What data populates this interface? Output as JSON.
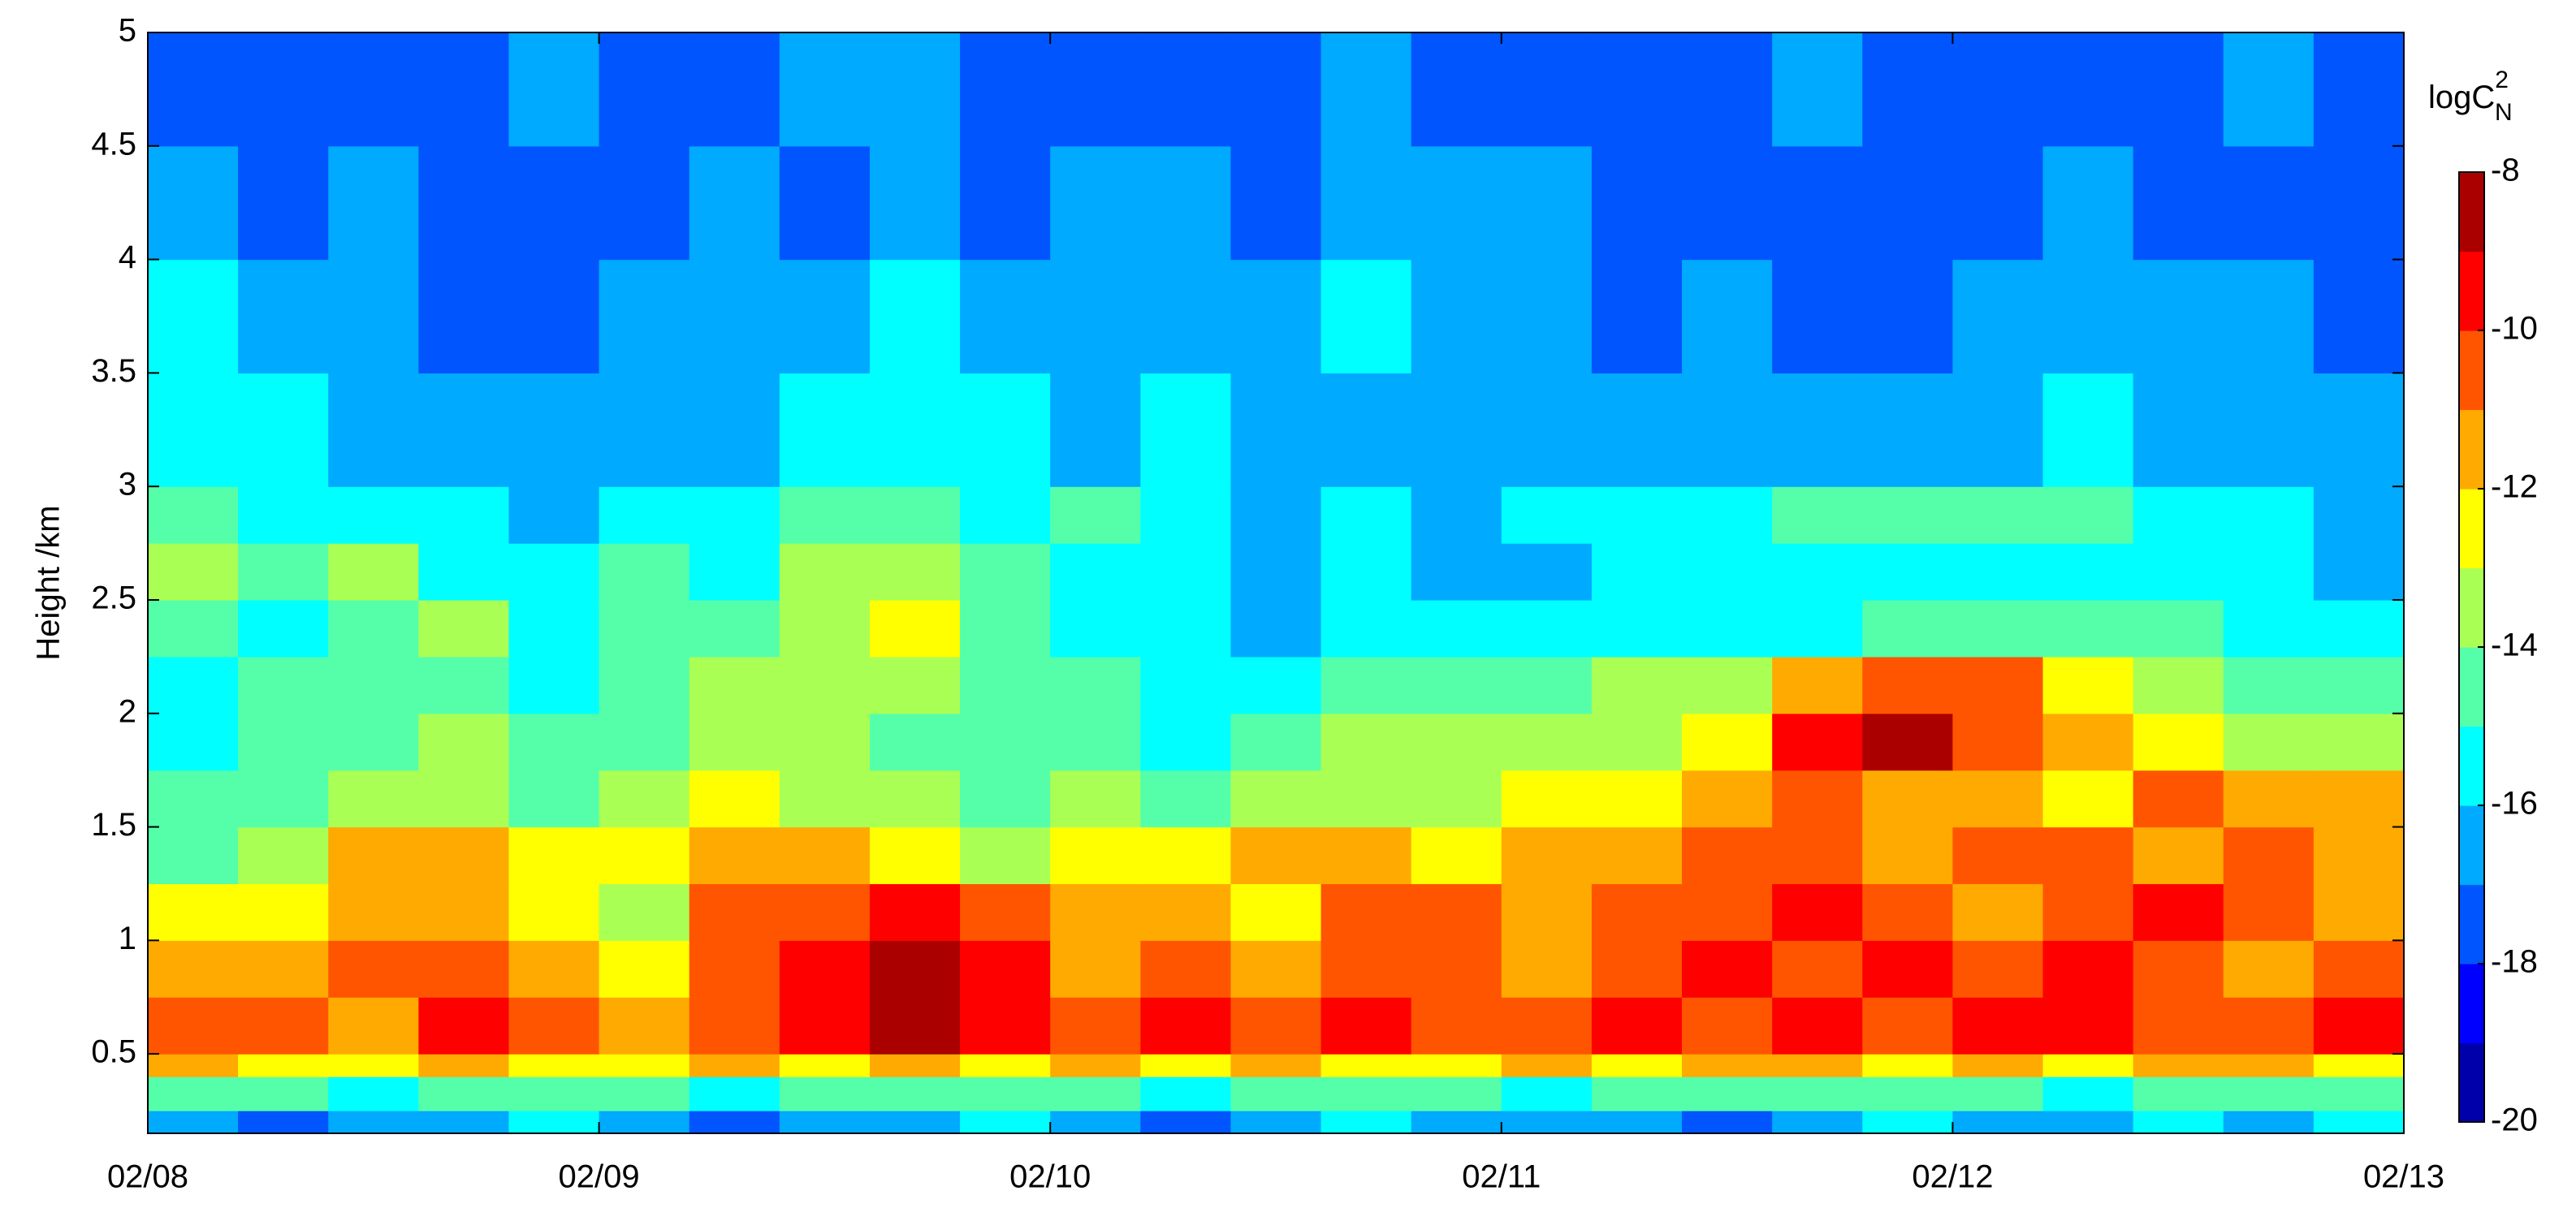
{
  "chart_data": {
    "type": "heatmap",
    "ylabel": "Height /km",
    "colorbar_label": {
      "base": "logC",
      "sup": "2",
      "sub": "N"
    },
    "colormap": "jet",
    "clim": [
      -20,
      -8
    ],
    "cticks": [
      -8,
      -10,
      -12,
      -14,
      -16,
      -18,
      -20
    ],
    "xlim": [
      8,
      13
    ],
    "xticks": [
      {
        "value": 8,
        "label": "02/08"
      },
      {
        "value": 9,
        "label": "02/09"
      },
      {
        "value": 10,
        "label": "02/10"
      },
      {
        "value": 11,
        "label": "02/11"
      },
      {
        "value": 12,
        "label": "02/12"
      },
      {
        "value": 13,
        "label": "02/13"
      }
    ],
    "ylim": [
      0.15,
      5
    ],
    "yticks": [
      0.5,
      1,
      1.5,
      2,
      2.5,
      3,
      3.5,
      4,
      4.5,
      5
    ],
    "x_bins": [
      8,
      8.2,
      8.4,
      8.6,
      8.8,
      9,
      9.2,
      9.4,
      9.6,
      9.8,
      10,
      10.2,
      10.4,
      10.6,
      10.8,
      11,
      11.2,
      11.4,
      11.6,
      11.8,
      12,
      12.2,
      12.4,
      12.6,
      12.8,
      13
    ],
    "y_bins": [
      0.15,
      0.25,
      0.4,
      0.5,
      0.75,
      1,
      1.25,
      1.5,
      1.75,
      2,
      2.25,
      2.5,
      2.75,
      3,
      3.5,
      4,
      4.5,
      5
    ],
    "values": [
      [
        -17,
        -18,
        -17,
        -17,
        -16,
        -17,
        -18,
        -17,
        -17,
        -16,
        -17,
        -18,
        -17,
        -16,
        -17,
        -17,
        -17,
        -18,
        -17,
        -16,
        -17,
        -17,
        -16,
        -17,
        -16
      ],
      [
        -15,
        -15,
        -16,
        -15,
        -15,
        -15,
        -16,
        -15,
        -15,
        -15,
        -15,
        -16,
        -15,
        -15,
        -15,
        -16,
        -15,
        -15,
        -15,
        -15,
        -15,
        -16,
        -15,
        -15,
        -15
      ],
      [
        -12,
        -13,
        -13,
        -12,
        -13,
        -13,
        -12,
        -13,
        -12,
        -13,
        -12,
        -13,
        -12,
        -13,
        -13,
        -12,
        -13,
        -12,
        -12,
        -13,
        -12,
        -13,
        -12,
        -12,
        -13
      ],
      [
        -11,
        -11,
        -12,
        -10,
        -11,
        -12,
        -11,
        -10,
        -9,
        -10,
        -11,
        -10,
        -11,
        -10,
        -11,
        -11,
        -10,
        -11,
        -10,
        -11,
        -10,
        -10,
        -11,
        -11,
        -10
      ],
      [
        -12,
        -12,
        -11,
        -11,
        -12,
        -13,
        -11,
        -10,
        -9,
        -10,
        -12,
        -11,
        -12,
        -11,
        -11,
        -12,
        -11,
        -10,
        -11,
        -10,
        -11,
        -10,
        -11,
        -12,
        -11
      ],
      [
        -13,
        -13,
        -12,
        -12,
        -13,
        -14,
        -11,
        -11,
        -10,
        -11,
        -12,
        -12,
        -13,
        -11,
        -11,
        -12,
        -11,
        -11,
        -10,
        -11,
        -12,
        -11,
        -10,
        -11,
        -12
      ],
      [
        -15,
        -14,
        -12,
        -12,
        -13,
        -13,
        -12,
        -12,
        -13,
        -14,
        -13,
        -13,
        -12,
        -12,
        -13,
        -12,
        -12,
        -11,
        -11,
        -12,
        -11,
        -11,
        -12,
        -11,
        -12
      ],
      [
        -15,
        -15,
        -14,
        -14,
        -15,
        -14,
        -13,
        -14,
        -14,
        -15,
        -14,
        -15,
        -14,
        -14,
        -14,
        -13,
        -13,
        -12,
        -11,
        -12,
        -12,
        -13,
        -11,
        -12,
        -12
      ],
      [
        -16,
        -15,
        -15,
        -14,
        -15,
        -15,
        -14,
        -14,
        -15,
        -15,
        -15,
        -16,
        -15,
        -14,
        -14,
        -14,
        -14,
        -13,
        -10,
        -9,
        -11,
        -12,
        -13,
        -14,
        -14
      ],
      [
        -16,
        -15,
        -15,
        -15,
        -16,
        -15,
        -14,
        -14,
        -14,
        -15,
        -15,
        -16,
        -16,
        -15,
        -15,
        -15,
        -14,
        -14,
        -12,
        -11,
        -11,
        -13,
        -14,
        -15,
        -15
      ],
      [
        -15,
        -16,
        -15,
        -14,
        -16,
        -15,
        -15,
        -14,
        -13,
        -15,
        -16,
        -16,
        -17,
        -16,
        -16,
        -16,
        -16,
        -16,
        -16,
        -15,
        -15,
        -15,
        -15,
        -16,
        -16
      ],
      [
        -14,
        -15,
        -14,
        -16,
        -16,
        -15,
        -16,
        -14,
        -14,
        -15,
        -16,
        -16,
        -17,
        -16,
        -17,
        -17,
        -16,
        -16,
        -16,
        -16,
        -16,
        -16,
        -16,
        -16,
        -17
      ],
      [
        -15,
        -16,
        -16,
        -16,
        -17,
        -16,
        -16,
        -15,
        -15,
        -16,
        -15,
        -16,
        -17,
        -16,
        -17,
        -16,
        -16,
        -16,
        -15,
        -15,
        -15,
        -15,
        -16,
        -16,
        -17
      ],
      [
        -16,
        -16,
        -17,
        -17,
        -17,
        -17,
        -17,
        -16,
        -16,
        -16,
        -17,
        -16,
        -17,
        -17,
        -17,
        -17,
        -17,
        -17,
        -17,
        -17,
        -17,
        -16,
        -17,
        -17,
        -17
      ],
      [
        -16,
        -17,
        -17,
        -18,
        -18,
        -17,
        -17,
        -17,
        -16,
        -17,
        -17,
        -17,
        -17,
        -16,
        -17,
        -17,
        -18,
        -17,
        -18,
        -18,
        -17,
        -17,
        -17,
        -17,
        -18
      ],
      [
        -17,
        -18,
        -17,
        -18,
        -18,
        -18,
        -17,
        -18,
        -17,
        -18,
        -17,
        -17,
        -18,
        -17,
        -17,
        -17,
        -18,
        -18,
        -18,
        -18,
        -18,
        -17,
        -18,
        -18,
        -18
      ],
      [
        -18,
        -18,
        -18,
        -18,
        -17,
        -18,
        -18,
        -17,
        -17,
        -18,
        -18,
        -18,
        -18,
        -17,
        -18,
        -18,
        -18,
        -18,
        -17,
        -18,
        -18,
        -18,
        -18,
        -17,
        -18
      ]
    ]
  }
}
